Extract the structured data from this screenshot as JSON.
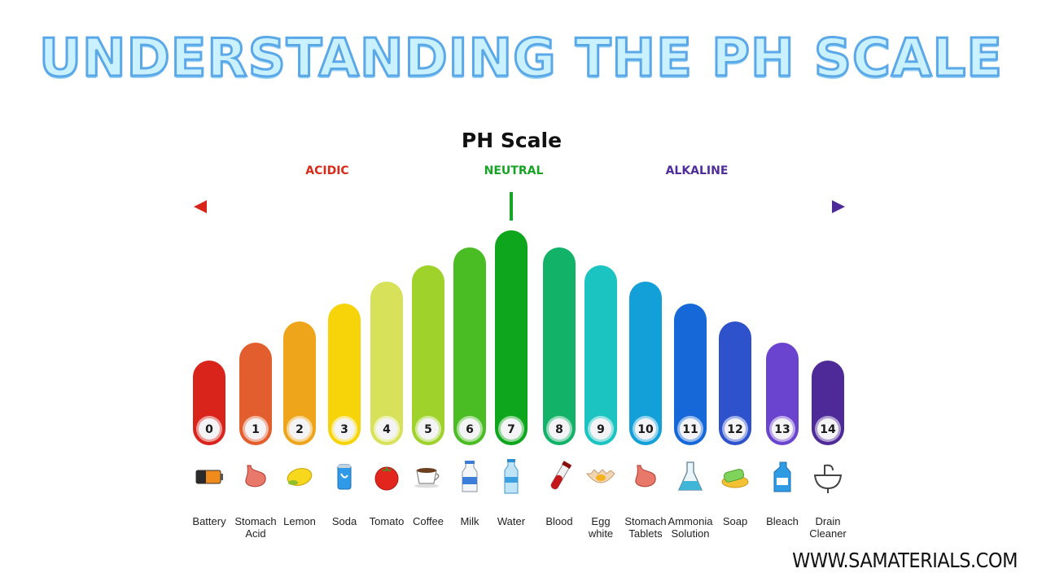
{
  "header": {
    "banner_title": "UNDERSTANDING THE PH SCALE",
    "scale_title": "PH Scale"
  },
  "zones": {
    "acidic": {
      "label": "ACIDIC",
      "color": "#d62a1a"
    },
    "neutral": {
      "label": "NEUTRAL",
      "color": "#17a325"
    },
    "alkaline": {
      "label": "ALKALINE",
      "color": "#4f2d9a"
    }
  },
  "footer": {
    "website": "WWW.SAMATERIALS.COM"
  },
  "scale": [
    {
      "ph": "0",
      "lines": [
        "Battery"
      ],
      "color": "#d9241b",
      "icon": "battery-icon"
    },
    {
      "ph": "1",
      "lines": [
        "Stomach",
        "Acid"
      ],
      "color": "#e35e2e",
      "icon": "stomach-icon"
    },
    {
      "ph": "2",
      "lines": [
        "Lemon"
      ],
      "color": "#efa51b",
      "icon": "lemon-icon"
    },
    {
      "ph": "3",
      "lines": [
        "Soda"
      ],
      "color": "#f7d40a",
      "icon": "soda-can-icon"
    },
    {
      "ph": "4",
      "lines": [
        "Tomato"
      ],
      "color": "#d7e25a",
      "icon": "tomato-icon"
    },
    {
      "ph": "5",
      "lines": [
        "Coffee"
      ],
      "color": "#9fd22a",
      "icon": "coffee-cup-icon"
    },
    {
      "ph": "6",
      "lines": [
        "Milk"
      ],
      "color": "#4bbd24",
      "icon": "milk-bottle-icon"
    },
    {
      "ph": "7",
      "lines": [
        "Water"
      ],
      "color": "#0ea61c",
      "icon": "water-bottle-icon"
    },
    {
      "ph": "8",
      "lines": [
        "Blood"
      ],
      "color": "#13b269",
      "icon": "blood-tube-icon"
    },
    {
      "ph": "9",
      "lines": [
        "Egg",
        "white"
      ],
      "color": "#1bc4c0",
      "icon": "egg-icon"
    },
    {
      "ph": "10",
      "lines": [
        "Stomach",
        "Tablets"
      ],
      "color": "#139fd8",
      "icon": "stomach-icon"
    },
    {
      "ph": "11",
      "lines": [
        "Ammonia",
        "Solution"
      ],
      "color": "#1668d9",
      "icon": "flask-icon"
    },
    {
      "ph": "12",
      "lines": [
        "Soap"
      ],
      "color": "#2e52cc",
      "icon": "soap-icon"
    },
    {
      "ph": "13",
      "lines": [
        "Bleach"
      ],
      "color": "#6a43cf",
      "icon": "bleach-bottle-icon"
    },
    {
      "ph": "14",
      "lines": [
        "Drain",
        "Cleaner"
      ],
      "color": "#4e2a98",
      "icon": "sink-icon"
    }
  ]
}
